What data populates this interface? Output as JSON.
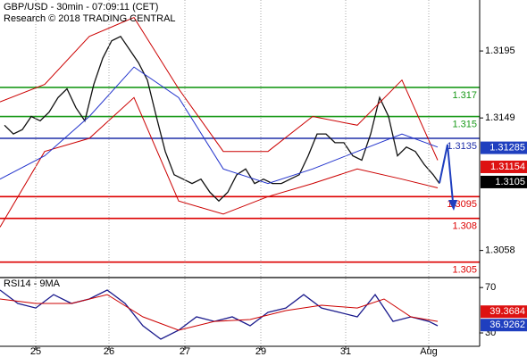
{
  "chart_data": [
    {
      "type": "line",
      "title": "GBP/USD - 30min - 07:09:11 (CET)",
      "subtitle": "Research © 2018 TRADING CENTRAL",
      "xlim": [
        0,
        53.7
      ],
      "ylim": [
        1.304,
        1.323
      ],
      "yticks": [
        1.3195,
        1.3149,
        1.3058
      ],
      "grid": true,
      "series": [
        {
          "color": "#111111",
          "x": [
            0.5,
            1.5,
            2.5,
            3.5,
            4.5,
            5.5,
            6.5,
            7.5,
            8.5,
            9.5,
            10.5,
            11.5,
            12.5,
            13.5,
            14.5,
            15.5,
            16.5,
            17.5,
            18.5,
            19.5,
            20.5,
            21.5,
            22.5,
            23.5,
            24.5,
            25.5,
            26.5,
            27.5,
            28.5,
            29.5,
            30.5,
            31.5,
            32.5,
            33.5,
            34.5,
            35.5,
            36.5,
            37.5,
            38.5,
            39.5,
            40.5,
            41.5,
            42.5,
            43.5,
            44.5,
            45.5,
            46.5,
            47.5,
            48.5,
            49.2
          ],
          "values": [
            1.3144,
            1.3138,
            1.3141,
            1.315,
            1.3147,
            1.3153,
            1.3163,
            1.3169,
            1.3156,
            1.3147,
            1.3172,
            1.319,
            1.3202,
            1.3205,
            1.3196,
            1.3187,
            1.3175,
            1.315,
            1.3126,
            1.311,
            1.3107,
            1.3104,
            1.3107,
            1.3098,
            1.3092,
            1.3098,
            1.311,
            1.3114,
            1.3104,
            1.3107,
            1.3104,
            1.3104,
            1.3107,
            1.311,
            1.3123,
            1.3138,
            1.3138,
            1.3132,
            1.3132,
            1.3123,
            1.312,
            1.3138,
            1.3163,
            1.315,
            1.3123,
            1.3129,
            1.3126,
            1.3117,
            1.311,
            1.3104
          ]
        },
        {
          "color": "#cc0000",
          "x": [
            0,
            5,
            10,
            15,
            20,
            25,
            30,
            35,
            40,
            45,
            49
          ],
          "values": [
            1.316,
            1.3172,
            1.3205,
            1.3218,
            1.3169,
            1.3126,
            1.3126,
            1.315,
            1.3144,
            1.3175,
            1.312
          ]
        },
        {
          "color": "#cc0000",
          "x": [
            0,
            5,
            10,
            15,
            20,
            25,
            30,
            35,
            40,
            45,
            49
          ],
          "values": [
            1.3074,
            1.3126,
            1.3135,
            1.3163,
            1.3092,
            1.3083,
            1.3095,
            1.3104,
            1.3114,
            1.3107,
            1.3101
          ]
        },
        {
          "color": "#2233cc",
          "x": [
            0,
            5,
            10,
            15,
            20,
            25,
            30,
            35,
            40,
            45,
            49
          ],
          "values": [
            1.3107,
            1.3123,
            1.315,
            1.3184,
            1.3163,
            1.3114,
            1.3104,
            1.3114,
            1.3126,
            1.3138,
            1.3129
          ]
        }
      ],
      "levels": [
        {
          "value": 1.317,
          "color": "#1a9a1a"
        },
        {
          "value": 1.315,
          "color": "#1a9a1a"
        },
        {
          "value": 1.3135,
          "color": "#1f2fa8"
        },
        {
          "value": 1.3095,
          "color": "#dd0000"
        },
        {
          "value": 1.308,
          "color": "#dd0000"
        },
        {
          "value": 1.305,
          "color": "#dd0000"
        }
      ],
      "markers": [
        {
          "value": 1.31285,
          "color": "#1f3fbf"
        },
        {
          "value": 1.31154,
          "color": "#dd1111"
        },
        {
          "value": 1.3105,
          "color": "#000000"
        }
      ]
    },
    {
      "type": "line",
      "title": "RSI14 - 9MA",
      "xlim": [
        0,
        53.7
      ],
      "xticks": [
        {
          "value": 4,
          "label": "25"
        },
        {
          "value": 12.2,
          "label": "26"
        },
        {
          "value": 20.7,
          "label": "27"
        },
        {
          "value": 29.2,
          "label": "29"
        },
        {
          "value": 38.7,
          "label": "31"
        },
        {
          "value": 48,
          "label": "Aug"
        }
      ],
      "ylim": [
        19,
        78
      ],
      "yticks": [
        70,
        30
      ],
      "grid": true,
      "series": [
        {
          "color": "#1a1a8c",
          "x": [
            0,
            2,
            4,
            6,
            8,
            10,
            12,
            14,
            16,
            18,
            20,
            22,
            24,
            26,
            28,
            30,
            32,
            34,
            36,
            38,
            40,
            42,
            44,
            46,
            48,
            49
          ],
          "values": [
            67.8,
            56.0,
            52.0,
            63.8,
            56.0,
            59.9,
            67.8,
            56.0,
            36.3,
            24.5,
            32.4,
            44.2,
            40.2,
            44.2,
            36.3,
            48.1,
            52.0,
            63.8,
            52.0,
            48.1,
            44.2,
            63.8,
            40.2,
            44.2,
            40.2,
            36.3
          ]
        },
        {
          "color": "#cc0000",
          "x": [
            0,
            4,
            8,
            12,
            16,
            20,
            24,
            28,
            32,
            36,
            40,
            43,
            46,
            49
          ],
          "values": [
            59.9,
            56.0,
            56.0,
            63.8,
            44.2,
            32.4,
            40.2,
            41.8,
            49.7,
            54.4,
            52.0,
            59.9,
            44.2,
            40.2
          ]
        }
      ],
      "markers": [
        {
          "value": 39.3684,
          "color": "#dd1111"
        },
        {
          "value": 36.9262,
          "color": "#1f3fbf"
        }
      ]
    }
  ]
}
